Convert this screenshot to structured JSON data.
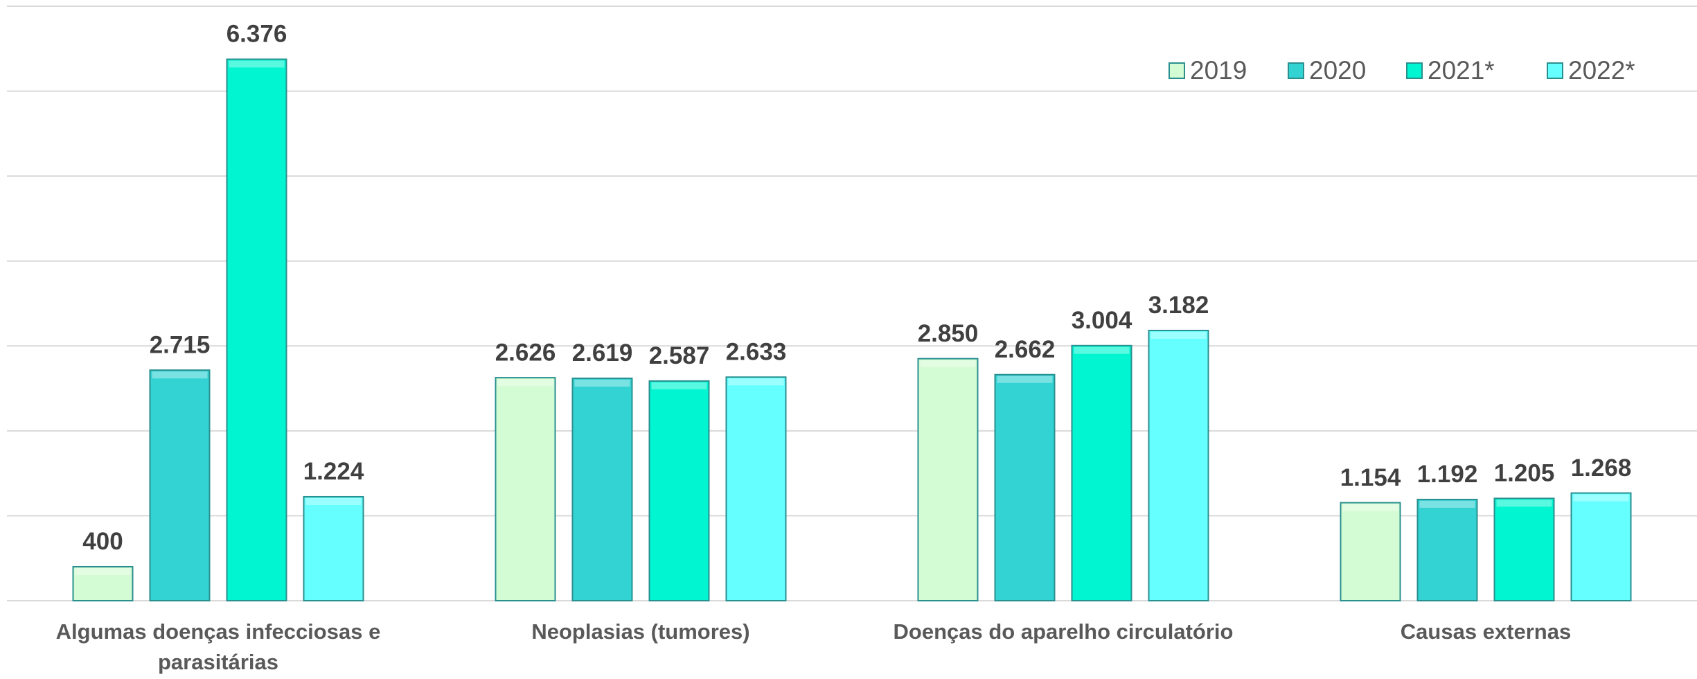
{
  "chart_data": {
    "type": "bar",
    "categories": [
      "Algumas doenças infecciosas e parasitárias",
      "Neoplasias (tumores)",
      "Doenças do aparelho circulatório",
      "Causas externas"
    ],
    "series": [
      {
        "name": "2019",
        "color": "#d4fcd4",
        "values": [
          400,
          2626,
          2850,
          1154
        ],
        "value_labels": [
          "400",
          "2.626",
          "2.850",
          "1.154"
        ]
      },
      {
        "name": "2020",
        "color": "#33d3d3",
        "values": [
          2715,
          2619,
          2662,
          1192
        ],
        "value_labels": [
          "2.715",
          "2.619",
          "2.662",
          "1.192"
        ]
      },
      {
        "name": "2021*",
        "color": "#00f5d0",
        "values": [
          6376,
          2587,
          3004,
          1205
        ],
        "value_labels": [
          "6.376",
          "2.587",
          "3.004",
          "1.205"
        ]
      },
      {
        "name": "2022*",
        "color": "#66ffff",
        "values": [
          1224,
          2633,
          3182,
          1268
        ],
        "value_labels": [
          "1.224",
          "2.633",
          "3.182",
          "1.268"
        ]
      }
    ],
    "ylim": [
      0,
      7000
    ],
    "yticks": [
      0,
      1000,
      2000,
      3000,
      4000,
      5000,
      6000,
      7000
    ],
    "grid": true,
    "legend": "top-right"
  }
}
